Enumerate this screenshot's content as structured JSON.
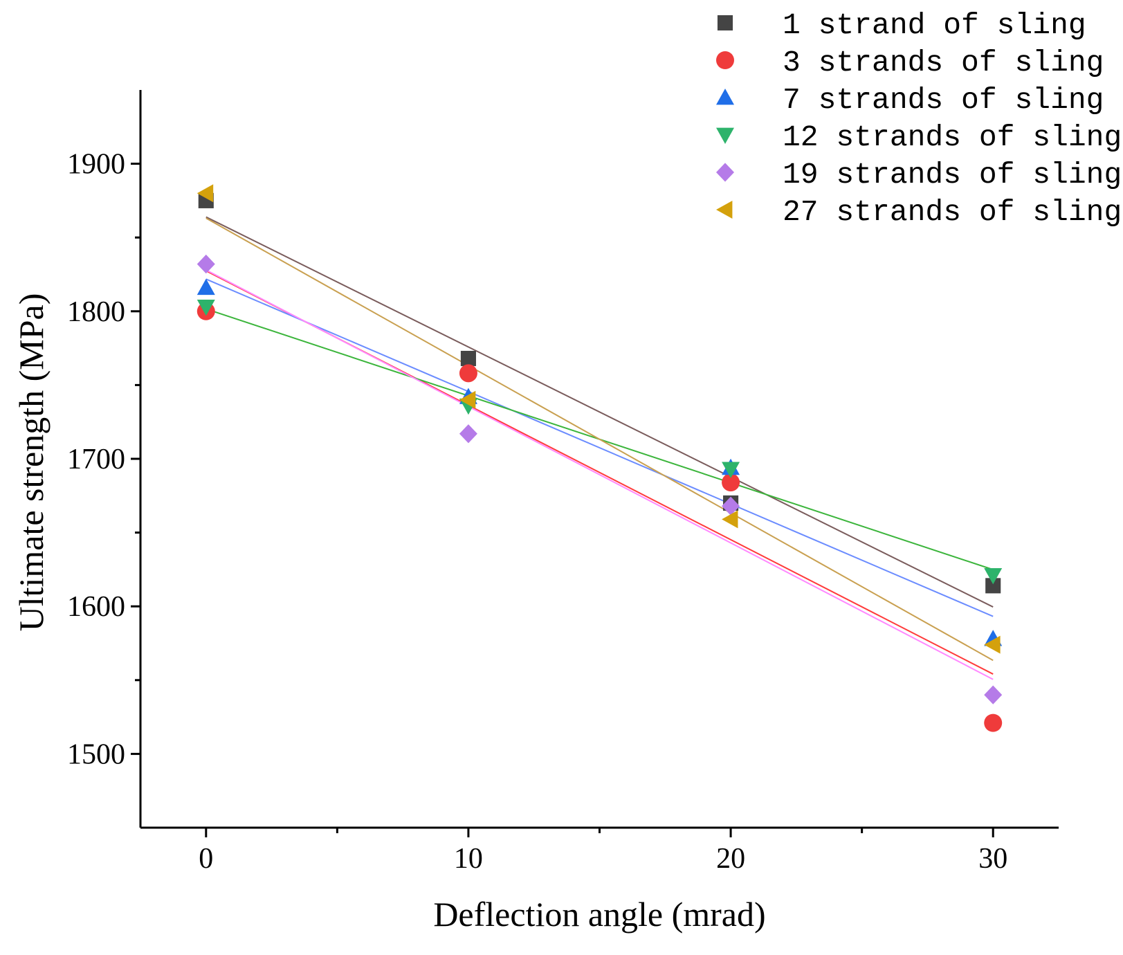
{
  "chart_data": {
    "type": "scatter",
    "title": "",
    "xlabel": "Deflection angle (mrad)",
    "ylabel": "Ultimate strength (MPa)",
    "xlim": [
      -2.5,
      32.5
    ],
    "ylim": [
      1450,
      1950
    ],
    "x_ticks": [
      0,
      10,
      20,
      30
    ],
    "x_minor_ticks": [
      5,
      15,
      25
    ],
    "y_ticks": [
      1500,
      1600,
      1700,
      1800,
      1900
    ],
    "y_minor_ticks": [
      1550,
      1650,
      1750,
      1850
    ],
    "legend_position": "top-right",
    "grid": false,
    "x": [
      0,
      10,
      20,
      30
    ],
    "series": [
      {
        "name": "1 strand of sling",
        "marker": "square",
        "color": "#444444",
        "fit_color": "#7a5c5c",
        "values": [
          1875,
          1768,
          1670,
          1614
        ]
      },
      {
        "name": "3 strands of sling",
        "marker": "circle",
        "color": "#ef3b3b",
        "fit_color": "#ff3b3b",
        "values": [
          1800,
          1758,
          1684,
          1521
        ]
      },
      {
        "name": "7 strands of sling",
        "marker": "triangle-up",
        "color": "#1f6ee8",
        "fit_color": "#6b8cff",
        "values": [
          1816,
          1742,
          1694,
          1578
        ]
      },
      {
        "name": "12 strands of sling",
        "marker": "triangle-down",
        "color": "#2db36b",
        "fit_color": "#3cb53c",
        "values": [
          1803,
          1736,
          1693,
          1621
        ]
      },
      {
        "name": "19 strands of sling",
        "marker": "diamond",
        "color": "#b57be8",
        "fit_color": "#ff88ff",
        "values": [
          1832,
          1717,
          1668,
          1540
        ]
      },
      {
        "name": "27 strands of sling",
        "marker": "triangle-left",
        "color": "#d4a10c",
        "fit_color": "#c9a050",
        "values": [
          1880,
          1740,
          1659,
          1574
        ]
      }
    ]
  }
}
